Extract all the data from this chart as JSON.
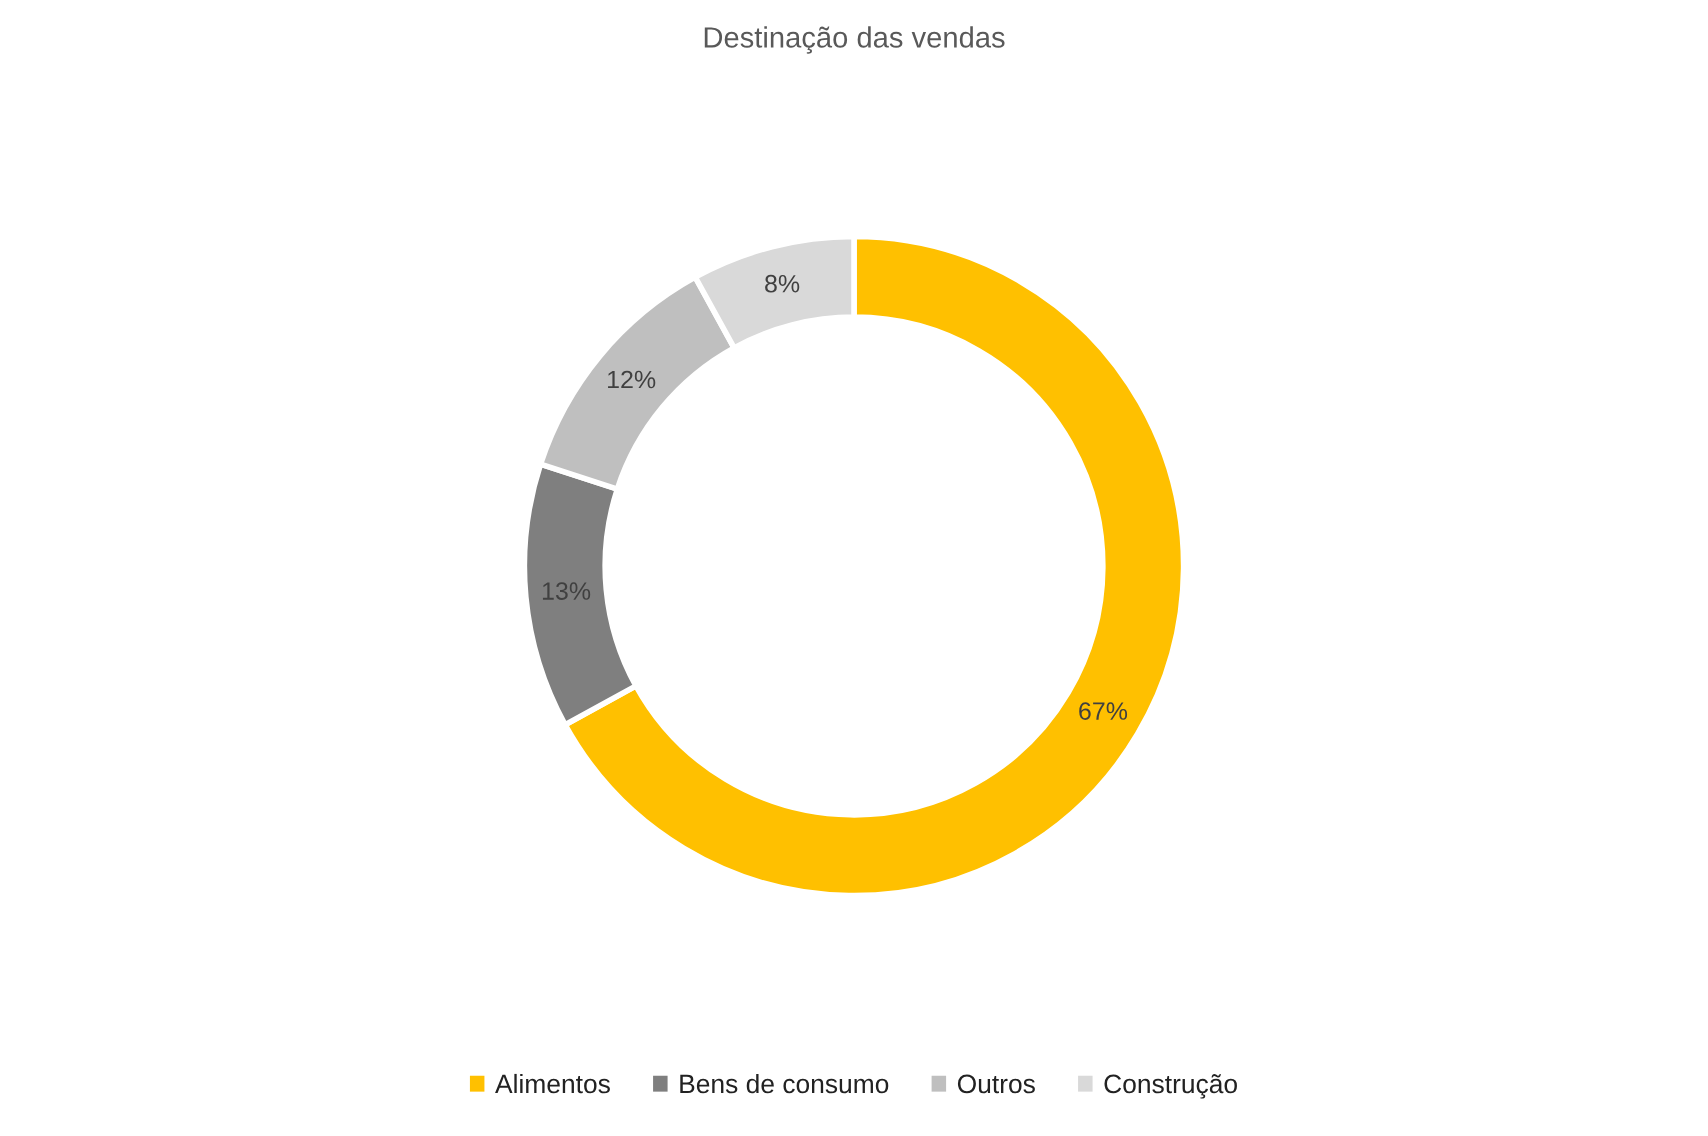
{
  "chart_data": {
    "type": "donut",
    "title": "Destinação das vendas",
    "categories": [
      "Alimentos",
      "Bens de consumo",
      "Outros",
      "Construção"
    ],
    "values": [
      67,
      13,
      12,
      8
    ],
    "colors": [
      "#ffc000",
      "#7f7f7f",
      "#bfbfbf",
      "#d9d9d9"
    ],
    "value_labels": [
      "67%",
      "13%",
      "12%",
      "8%"
    ],
    "legend": "bottom"
  }
}
